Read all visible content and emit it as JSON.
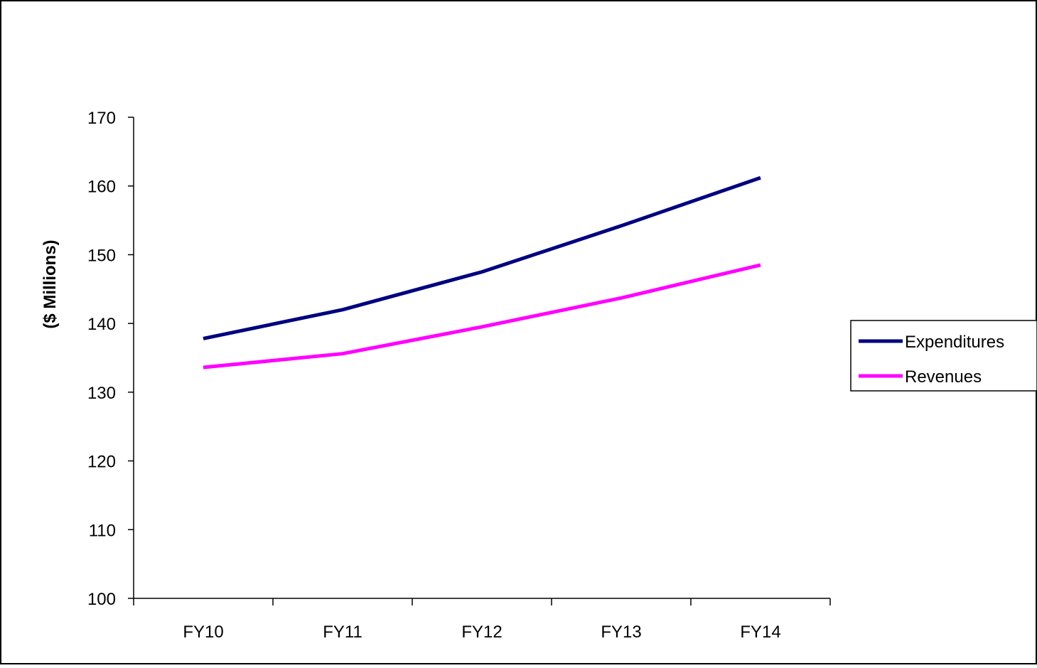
{
  "chart_data": {
    "type": "line",
    "title": "",
    "xlabel": "",
    "ylabel": "($ Millions)",
    "categories": [
      "FY10",
      "FY11",
      "FY12",
      "FY13",
      "FY14"
    ],
    "ylim": [
      100,
      170
    ],
    "yticks": [
      100,
      110,
      120,
      130,
      140,
      150,
      160,
      170
    ],
    "grid": false,
    "legend_position": "right",
    "series": [
      {
        "name": "Expenditures",
        "color": "#000080",
        "values": [
          137.8,
          142.0,
          147.5,
          154.2,
          161.2
        ]
      },
      {
        "name": "Revenues",
        "color": "#FF00FF",
        "values": [
          133.6,
          135.6,
          139.5,
          143.7,
          148.5
        ]
      }
    ]
  }
}
